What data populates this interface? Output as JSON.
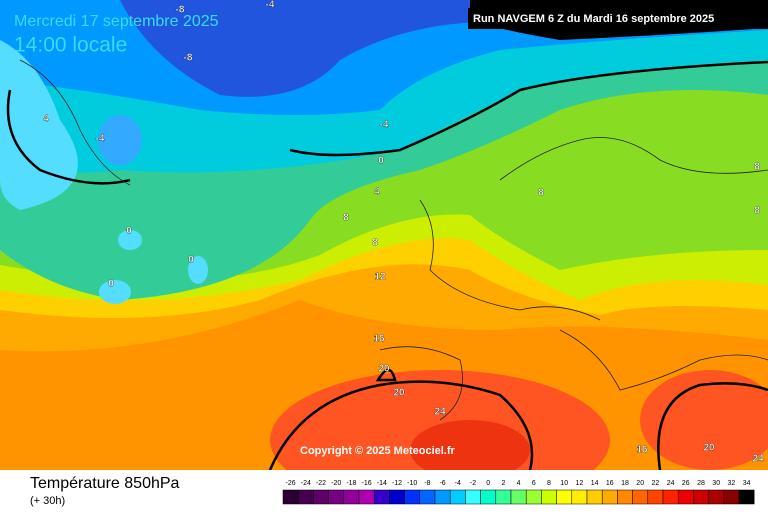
{
  "header": {
    "date": "Mercredi 17 septembre 2025",
    "time": "14:00 locale",
    "run": "Run NAVGEM 6 Z du Mardi 16 septembre 2025"
  },
  "copyright": "Copyright © 2025 Meteociel.fr",
  "footer": {
    "title": "Température 850hPa",
    "subtitle": "(+ 30h)"
  },
  "contour_labels": [
    -8,
    -8,
    -4,
    4,
    -4,
    -4,
    0,
    4,
    8,
    8,
    8,
    8,
    0,
    0,
    0,
    8,
    12,
    16,
    20,
    20,
    24,
    16,
    20,
    24
  ],
  "legend": {
    "values": [
      -26,
      -24,
      -22,
      -20,
      -18,
      -16,
      -14,
      -12,
      -10,
      -8,
      -6,
      -4,
      -2,
      0,
      2,
      4,
      6,
      8,
      10,
      12,
      14,
      16,
      18,
      20,
      22,
      24,
      26,
      28,
      30,
      32,
      34
    ],
    "colors": [
      "#2a0033",
      "#44004d",
      "#5e0066",
      "#780080",
      "#930099",
      "#ad00b3",
      "#3300cc",
      "#0000cc",
      "#0033ff",
      "#0066ff",
      "#0099ff",
      "#00ccff",
      "#33ffff",
      "#00ffcc",
      "#33ff99",
      "#66ff66",
      "#99ff33",
      "#ccff00",
      "#ffff00",
      "#ffee00",
      "#ffcc00",
      "#ffaa00",
      "#ff8800",
      "#ff6600",
      "#ff4400",
      "#ff2200",
      "#ee0000",
      "#cc0000",
      "#aa0000",
      "#880000",
      "#000000"
    ]
  }
}
